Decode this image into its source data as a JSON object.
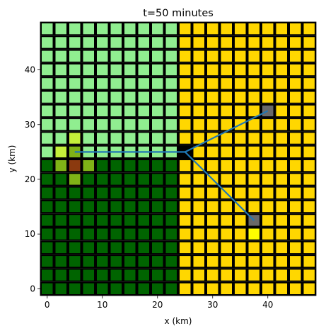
{
  "chart_data": {
    "type": "heatmap",
    "title": "t=50 minutes",
    "xlabel": "x (km)",
    "ylabel": "y (km)",
    "xlim": [
      -1.25,
      48.75
    ],
    "ylim": [
      -1.25,
      48.75
    ],
    "xticks": [
      0,
      10,
      20,
      30,
      40
    ],
    "yticks": [
      0,
      10,
      20,
      30,
      40
    ],
    "grid": {
      "cols": 20,
      "rows": 20,
      "cell_size_km": 2.5,
      "origin_km": [
        0,
        0
      ]
    },
    "colors": {
      "light_green": "#90ee90",
      "dark_green": "#006400",
      "gold": "#ffd700",
      "black": "#000000",
      "gray": "#696969",
      "yellow": "#ffff00",
      "yellow_green": "#c5ef3a",
      "olive_green": "#80b317",
      "brown": "#8b3a0f",
      "path": "#1f77b4",
      "cell_border": "#000000"
    },
    "regions": [
      {
        "color": "light_green",
        "col_range": [
          0,
          9
        ],
        "row_range": [
          10,
          19
        ]
      },
      {
        "color": "dark_green",
        "col_range": [
          0,
          9
        ],
        "row_range": [
          0,
          9
        ]
      },
      {
        "color": "gold",
        "col_range": [
          10,
          19
        ],
        "row_range": [
          0,
          19
        ]
      }
    ],
    "special_cells": [
      {
        "col": 2,
        "row": 10,
        "color": "olive_green"
      },
      {
        "col": 2,
        "row": 9,
        "color": "brown"
      },
      {
        "col": 1,
        "row": 9,
        "color": "olive_green"
      },
      {
        "col": 2,
        "row": 8,
        "color": "olive_green"
      },
      {
        "col": 2,
        "row": 11,
        "color": "yellow_green"
      },
      {
        "col": 1,
        "row": 10,
        "color": "yellow_green"
      },
      {
        "col": 3,
        "row": 9,
        "color": "olive_green"
      },
      {
        "col": 10,
        "row": 10,
        "color": "black"
      },
      {
        "col": 15,
        "row": 5,
        "color": "gray"
      },
      {
        "col": 15,
        "row": 4,
        "color": "yellow"
      },
      {
        "col": 16,
        "row": 13,
        "color": "gray"
      }
    ],
    "series": [
      {
        "x": [
          5,
          25
        ],
        "y": [
          25,
          25
        ]
      },
      {
        "x": [
          25,
          40
        ],
        "y": [
          25,
          32.5
        ]
      },
      {
        "x": [
          25,
          37.5
        ],
        "y": [
          25,
          12.5
        ]
      }
    ]
  }
}
